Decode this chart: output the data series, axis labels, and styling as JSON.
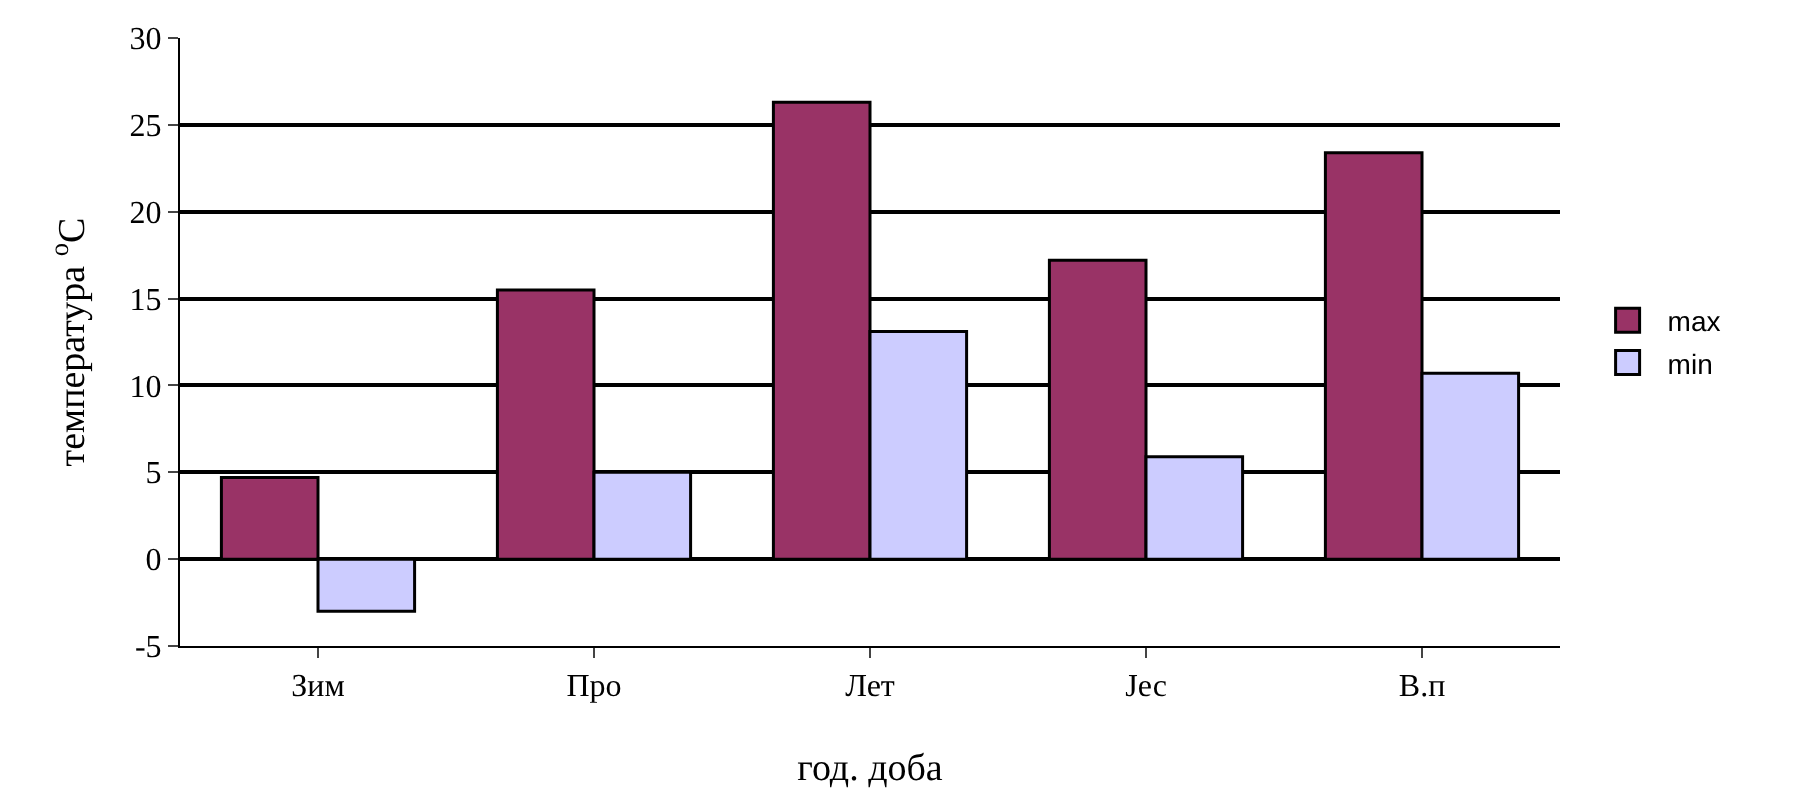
{
  "chart_data": {
    "type": "bar",
    "xlabel": "год. доба",
    "ylabel": "температура $^{o}$C",
    "categories": [
      "Зим",
      "Про",
      "Лет",
      "Јес",
      "В.п"
    ],
    "series": [
      {
        "name": "max",
        "color": "#993366",
        "values": [
          4.7,
          15.5,
          26.3,
          17.2,
          23.4
        ]
      },
      {
        "name": "min",
        "color": "#ccccff",
        "values": [
          -3,
          5,
          13.1,
          5.9,
          10.7
        ]
      }
    ],
    "ylim": [
      -5,
      30
    ],
    "yticks": [
      -5,
      0,
      5,
      10,
      15,
      20,
      25,
      30
    ],
    "grid": "y",
    "legend": "right"
  }
}
